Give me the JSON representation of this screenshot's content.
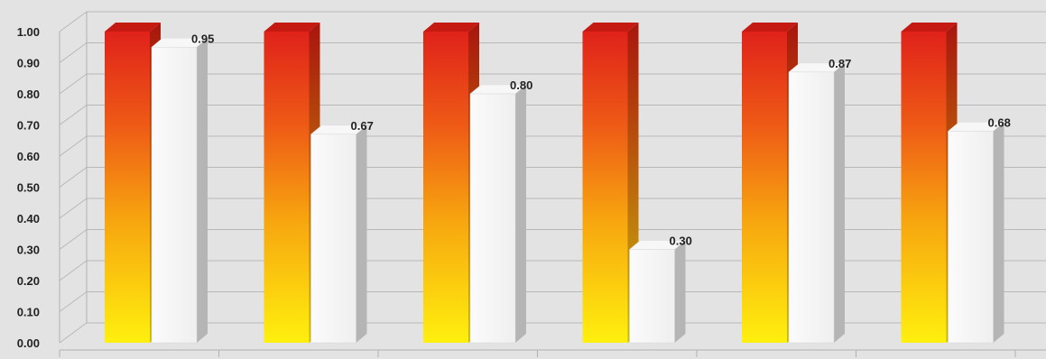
{
  "chart_data": {
    "type": "bar",
    "style": "3d-clustered-columns",
    "categories": [
      "",
      "",
      "",
      "",
      "",
      ""
    ],
    "series": [
      {
        "values": [
          1.0,
          1.0,
          1.0,
          1.0,
          1.0,
          1.0
        ],
        "color_top": "#e0221a",
        "color_bottom": "#ffee10",
        "data_labels": false
      },
      {
        "values": [
          0.95,
          0.67,
          0.8,
          0.3,
          0.87,
          0.68
        ],
        "color_top": "#ffffff",
        "color_bottom": "#f4f4f4",
        "data_labels": true
      }
    ],
    "data_labels": [
      "0.95",
      "0.67",
      "0.80",
      "0.30",
      "0.87",
      "0.68"
    ],
    "ylim": [
      0,
      1
    ],
    "yticks": [
      "0.00",
      "0.10",
      "0.20",
      "0.30",
      "0.40",
      "0.50",
      "0.60",
      "0.70",
      "0.80",
      "0.90",
      "1.00"
    ],
    "grid": true,
    "title": "",
    "xlabel": "",
    "ylabel": "",
    "background_color": "#e3e3e3",
    "gridline_color": "#b8b8b8"
  }
}
